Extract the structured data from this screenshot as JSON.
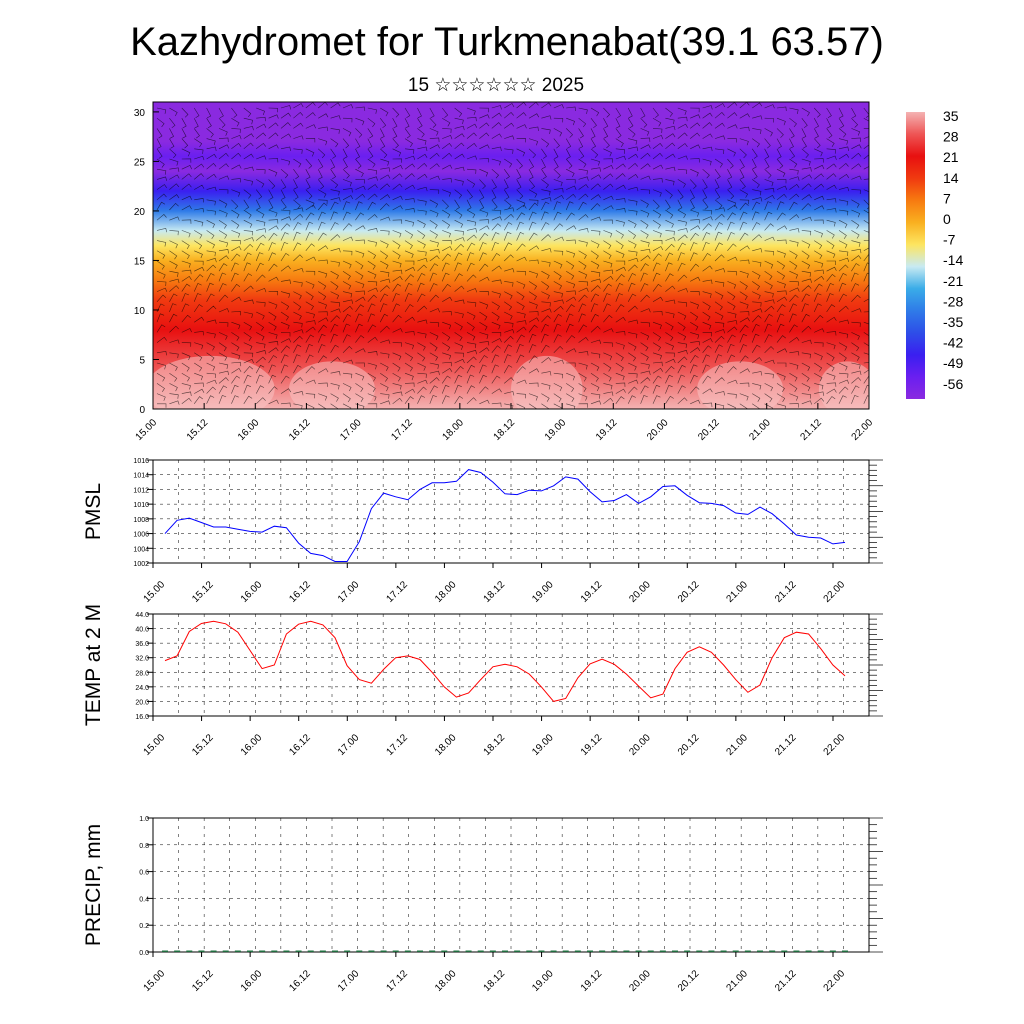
{
  "title": "Kazhydromet for Turkmenabat(39.1 63.57)",
  "subtitle": "15 ☆☆☆☆☆☆ 2025",
  "x_ticks": [
    "15.00",
    "15.12",
    "16.00",
    "16.12",
    "17.00",
    "17.12",
    "18.00",
    "18.12",
    "19.00",
    "19.12",
    "20.00",
    "20.12",
    "21.00",
    "21.12",
    "22.00"
  ],
  "colors": {
    "pmsl_line": "#0000ff",
    "temp_line": "#ff0000",
    "precip_base": "#1f6f3f",
    "grid": "#000000"
  },
  "chart_data": [
    {
      "type": "heatmap",
      "name_hint": "temperature cross-section with wind barbs",
      "ylim": [
        0,
        31
      ],
      "y_ticks": [
        "0",
        "5",
        "10",
        "15",
        "20",
        "25",
        "30"
      ],
      "x_ticks_ref": "x_ticks",
      "colorbar": {
        "labels": [
          "35",
          "28",
          "21",
          "14",
          "7",
          "0",
          "-7",
          "-14",
          "-21",
          "-28",
          "-35",
          "-42",
          "-49",
          "-56"
        ],
        "colors": [
          "#f4b3b3",
          "#ee5555",
          "#e81010",
          "#f03a10",
          "#f77a10",
          "#f9b020",
          "#fde560",
          "#c8eaf2",
          "#3aace8",
          "#2f7be8",
          "#2e4ee8",
          "#3a1ff0",
          "#6a1ff0",
          "#8a2ae0"
        ]
      },
      "levels_by_height": [
        {
          "h": 0,
          "t": 35
        },
        {
          "h": 4,
          "t": 28
        },
        {
          "h": 8,
          "t": 21
        },
        {
          "h": 11,
          "t": 14
        },
        {
          "h": 13,
          "t": 7
        },
        {
          "h": 15,
          "t": 0
        },
        {
          "h": 16.5,
          "t": -7
        },
        {
          "h": 18,
          "t": -14
        },
        {
          "h": 20,
          "t": -28
        },
        {
          "h": 22,
          "t": -42
        },
        {
          "h": 24,
          "t": -56
        },
        {
          "h": 25.5,
          "t": -49
        },
        {
          "h": 27,
          "t": -56
        },
        {
          "h": 31,
          "t": -56
        }
      ]
    },
    {
      "type": "line",
      "ylabel": "PMSL",
      "ylim": [
        1002,
        1016
      ],
      "y_ticks": [
        "1002",
        "1004",
        "1006",
        "1008",
        "1010",
        "1012",
        "1014",
        "1016"
      ],
      "x_ticks_ref": "x_ticks",
      "series": [
        {
          "values": [
            1006.0,
            1007.8,
            1008.1,
            1007.5,
            1006.9,
            1006.9,
            1006.6,
            1006.3,
            1006.2,
            1007.0,
            1006.8,
            1004.7,
            1003.3,
            1003.0,
            1002.2,
            1002.2,
            1004.9,
            1009.4,
            1011.5,
            1011.0,
            1010.6,
            1012.0,
            1012.9,
            1012.9,
            1013.1,
            1014.7,
            1014.3,
            1013.0,
            1011.4,
            1011.3,
            1011.9,
            1011.8,
            1012.5,
            1013.7,
            1013.4,
            1011.7,
            1010.3,
            1010.5,
            1011.3,
            1010.1,
            1011.0,
            1012.4,
            1012.5,
            1011.2,
            1010.2,
            1010.1,
            1009.8,
            1008.8,
            1008.6,
            1009.6,
            1008.7,
            1007.3,
            1005.8,
            1005.5,
            1005.4,
            1004.6,
            1004.8
          ]
        }
      ]
    },
    {
      "type": "line",
      "ylabel": "TEMP at 2 M",
      "ylim": [
        16.0,
        44.0
      ],
      "y_ticks": [
        "16.0",
        "20.0",
        "24.0",
        "28.0",
        "32.0",
        "36.0",
        "40.0",
        "44.0"
      ],
      "x_ticks_ref": "x_ticks",
      "series": [
        {
          "values": [
            31.2,
            32.5,
            39.2,
            41.4,
            42.0,
            41.3,
            39.0,
            34.0,
            29.0,
            30.0,
            38.5,
            41.2,
            42.0,
            41.0,
            37.5,
            29.8,
            26.0,
            25.0,
            28.8,
            32.0,
            32.5,
            31.5,
            28.0,
            24.0,
            21.2,
            22.3,
            26.0,
            29.5,
            30.2,
            29.5,
            27.5,
            24.0,
            20.0,
            20.8,
            26.5,
            30.3,
            31.6,
            30.2,
            27.5,
            24.2,
            21.0,
            22.0,
            29.0,
            33.5,
            35.0,
            33.5,
            30.0,
            26.0,
            22.5,
            24.5,
            32.0,
            37.5,
            39.0,
            38.5,
            34.5,
            30.0,
            27.0
          ]
        }
      ]
    },
    {
      "type": "bar",
      "ylabel": "PRECIP, mm",
      "ylim": [
        0.0,
        1.0
      ],
      "y_ticks": [
        "0.0",
        "0.2",
        "0.4",
        "0.6",
        "0.8",
        "1.0"
      ],
      "x_ticks_ref": "x_ticks",
      "series": [
        {
          "values": [
            0,
            0,
            0,
            0,
            0,
            0,
            0,
            0,
            0,
            0,
            0,
            0,
            0,
            0,
            0,
            0,
            0,
            0,
            0,
            0,
            0,
            0,
            0,
            0,
            0,
            0,
            0,
            0,
            0,
            0,
            0,
            0,
            0,
            0,
            0,
            0,
            0,
            0,
            0,
            0,
            0,
            0,
            0,
            0,
            0,
            0,
            0,
            0,
            0,
            0,
            0,
            0,
            0,
            0,
            0,
            0,
            0
          ]
        }
      ]
    }
  ]
}
